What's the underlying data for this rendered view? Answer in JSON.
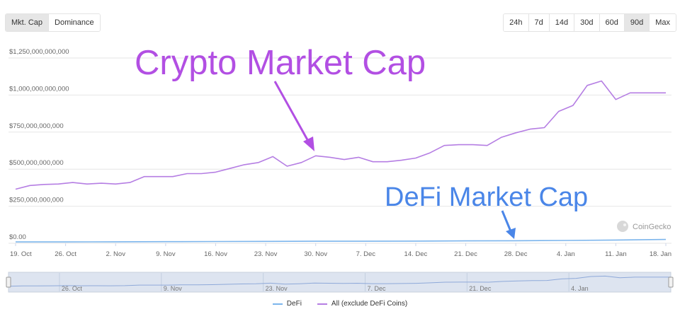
{
  "toolbar": {
    "left_tabs": [
      {
        "label": "Mkt. Cap",
        "active": true
      },
      {
        "label": "Dominance",
        "active": false
      }
    ],
    "ranges": [
      {
        "label": "24h",
        "active": false
      },
      {
        "label": "7d",
        "active": false
      },
      {
        "label": "14d",
        "active": false
      },
      {
        "label": "30d",
        "active": false
      },
      {
        "label": "60d",
        "active": false
      },
      {
        "label": "90d",
        "active": true
      },
      {
        "label": "Max",
        "active": false
      }
    ]
  },
  "annotations": {
    "crypto_label": "Crypto Market Cap",
    "defi_label": "DeFi Market Cap"
  },
  "watermark": "CoinGecko",
  "colors": {
    "all_series": "#b57ee3",
    "defi_series": "#7cb5ec",
    "crypto_annotation": "#b24fe3",
    "defi_annotation": "#4a86e8",
    "grid": "#e6e6e6",
    "navigator_fill": "#dde4f0"
  },
  "chart_data": {
    "type": "line",
    "title": "",
    "xlabel": "",
    "ylabel": "",
    "ylim": [
      0,
      1250000000000
    ],
    "x_start": "2020-10-19",
    "x_end": "2021-01-18",
    "x_tick_labels": [
      "19. Oct",
      "26. Oct",
      "2. Nov",
      "9. Nov",
      "16. Nov",
      "23. Nov",
      "30. Nov",
      "7. Dec",
      "14. Dec",
      "21. Dec",
      "28. Dec",
      "4. Jan",
      "11. Jan",
      "18. Jan"
    ],
    "y_tick_labels": [
      "$0.00",
      "$250,000,000,000",
      "$500,000,000,000",
      "$750,000,000,000",
      "$1,000,000,000,000",
      "$1,250,000,000,000"
    ],
    "y_ticks": [
      0,
      250000000000,
      500000000000,
      750000000000,
      1000000000000,
      1250000000000
    ],
    "navigator_tick_labels": [
      "26. Oct",
      "9. Nov",
      "23. Nov",
      "7. Dec",
      "21. Dec",
      "4. Jan"
    ],
    "grid": true,
    "legend": "bottom-center",
    "series": [
      {
        "name": "All (exclude DeFi Coins)",
        "x": [
          "2020-10-19",
          "2020-10-21",
          "2020-10-23",
          "2020-10-25",
          "2020-10-27",
          "2020-10-29",
          "2020-10-31",
          "2020-11-02",
          "2020-11-04",
          "2020-11-06",
          "2020-11-08",
          "2020-11-10",
          "2020-11-12",
          "2020-11-14",
          "2020-11-16",
          "2020-11-18",
          "2020-11-20",
          "2020-11-22",
          "2020-11-24",
          "2020-11-26",
          "2020-11-28",
          "2020-11-30",
          "2020-12-02",
          "2020-12-04",
          "2020-12-06",
          "2020-12-08",
          "2020-12-10",
          "2020-12-12",
          "2020-12-14",
          "2020-12-16",
          "2020-12-18",
          "2020-12-20",
          "2020-12-22",
          "2020-12-24",
          "2020-12-26",
          "2020-12-28",
          "2020-12-30",
          "2021-01-01",
          "2021-01-03",
          "2021-01-05",
          "2021-01-07",
          "2021-01-09",
          "2021-01-11",
          "2021-01-13",
          "2021-01-15",
          "2021-01-18"
        ],
        "values": [
          365000000000,
          390000000000,
          397000000000,
          400000000000,
          410000000000,
          400000000000,
          405000000000,
          400000000000,
          410000000000,
          450000000000,
          450000000000,
          450000000000,
          470000000000,
          470000000000,
          480000000000,
          505000000000,
          530000000000,
          545000000000,
          585000000000,
          520000000000,
          545000000000,
          590000000000,
          580000000000,
          565000000000,
          580000000000,
          550000000000,
          550000000000,
          560000000000,
          575000000000,
          610000000000,
          660000000000,
          665000000000,
          665000000000,
          660000000000,
          715000000000,
          745000000000,
          770000000000,
          780000000000,
          890000000000,
          930000000000,
          1065000000000,
          1095000000000,
          970000000000,
          1015000000000,
          1015000000000,
          1015000000000
        ]
      },
      {
        "name": "DeFi",
        "x": [
          "2020-10-19",
          "2020-10-26",
          "2020-11-02",
          "2020-11-09",
          "2020-11-16",
          "2020-11-23",
          "2020-11-30",
          "2020-12-07",
          "2020-12-14",
          "2020-12-21",
          "2020-12-28",
          "2021-01-04",
          "2021-01-11",
          "2021-01-18"
        ],
        "values": [
          9000000000,
          9000000000,
          10000000000,
          11000000000,
          12000000000,
          13000000000,
          14000000000,
          14000000000,
          15000000000,
          16000000000,
          17000000000,
          19000000000,
          22000000000,
          26000000000
        ]
      }
    ]
  }
}
